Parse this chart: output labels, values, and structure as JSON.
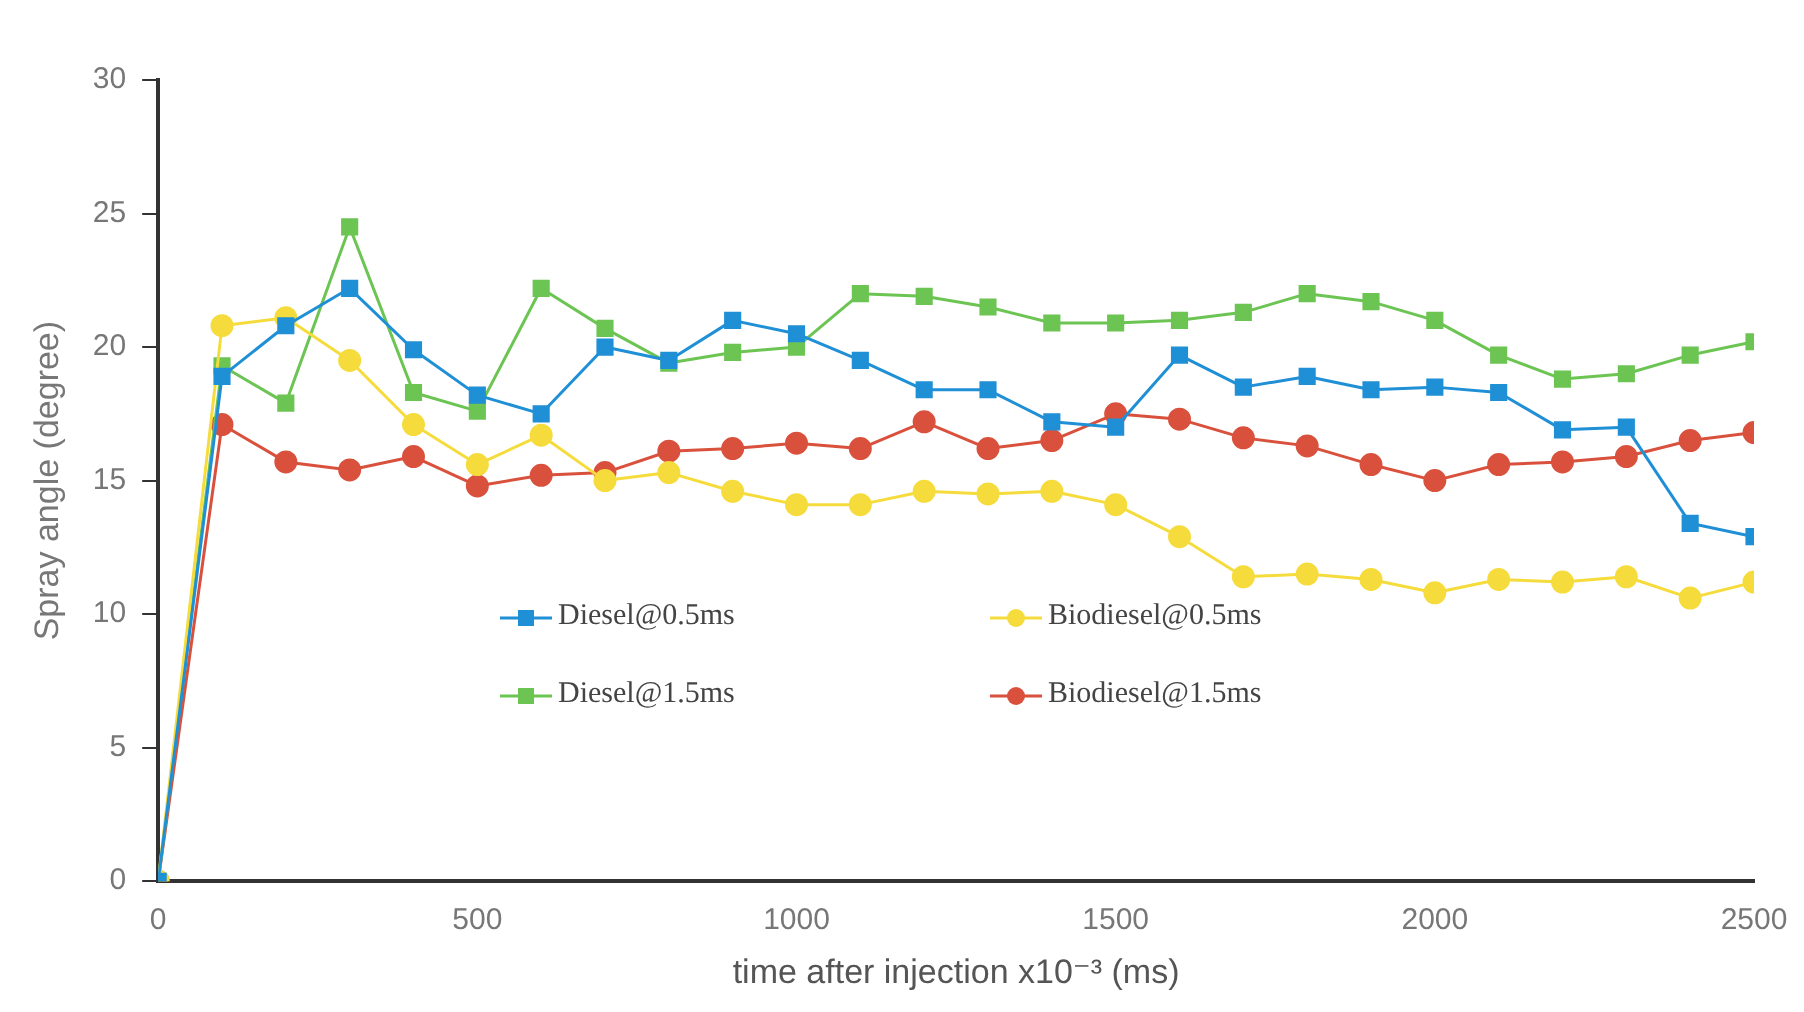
{
  "chart_data": {
    "type": "line",
    "xlabel": "time after injection x10⁻³ (ms)",
    "ylabel": "Spray angle (degree)",
    "x": [
      0,
      100,
      200,
      300,
      400,
      500,
      600,
      700,
      800,
      900,
      1000,
      1100,
      1200,
      1300,
      1400,
      1500,
      1600,
      1700,
      1800,
      1900,
      2000,
      2100,
      2200,
      2300,
      2400,
      2500
    ],
    "series": [
      {
        "name": "Diesel@0.5ms",
        "color": "#1f8fd6",
        "marker": "square",
        "values": [
          0,
          18.9,
          20.8,
          22.2,
          19.9,
          18.2,
          17.5,
          20.0,
          19.5,
          21.0,
          20.5,
          19.5,
          18.4,
          18.4,
          17.2,
          17.0,
          19.7,
          18.5,
          18.9,
          18.4,
          18.5,
          18.3,
          16.9,
          17.0,
          13.4,
          12.9
        ]
      },
      {
        "name": "Biodiesel@0.5ms",
        "color": "#f5dc3c",
        "marker": "circle",
        "values": [
          0,
          20.8,
          21.1,
          19.5,
          17.1,
          15.6,
          16.7,
          15.0,
          15.3,
          14.6,
          14.1,
          14.1,
          14.6,
          14.5,
          14.6,
          14.1,
          12.9,
          11.4,
          11.5,
          11.3,
          10.8,
          11.3,
          11.2,
          11.4,
          10.6,
          11.2
        ]
      },
      {
        "name": "Diesel@1.5ms",
        "color": "#6cc453",
        "marker": "square",
        "values": [
          0,
          19.3,
          17.9,
          24.5,
          18.3,
          17.6,
          22.2,
          20.7,
          19.4,
          19.8,
          20.0,
          22.0,
          21.9,
          21.5,
          20.9,
          20.9,
          21.0,
          21.3,
          22.0,
          21.7,
          21.0,
          19.7,
          18.8,
          19.0,
          19.7,
          20.2
        ]
      },
      {
        "name": "Biodiesel@1.5ms",
        "color": "#d9513d",
        "marker": "circle",
        "values": [
          0,
          17.1,
          15.7,
          15.4,
          15.9,
          14.8,
          15.2,
          15.3,
          16.1,
          16.2,
          16.4,
          16.2,
          17.2,
          16.2,
          16.5,
          17.5,
          17.3,
          16.6,
          16.3,
          15.6,
          15.0,
          15.6,
          15.7,
          15.9,
          16.5,
          16.8
        ]
      }
    ],
    "xlim": [
      0,
      2500
    ],
    "xticks": [
      0,
      500,
      1000,
      1500,
      2000,
      2500
    ],
    "ylim": [
      0,
      30
    ],
    "yticks": [
      0,
      5,
      10,
      15,
      20,
      25,
      30
    ],
    "grid": false,
    "legend": "bottom"
  }
}
